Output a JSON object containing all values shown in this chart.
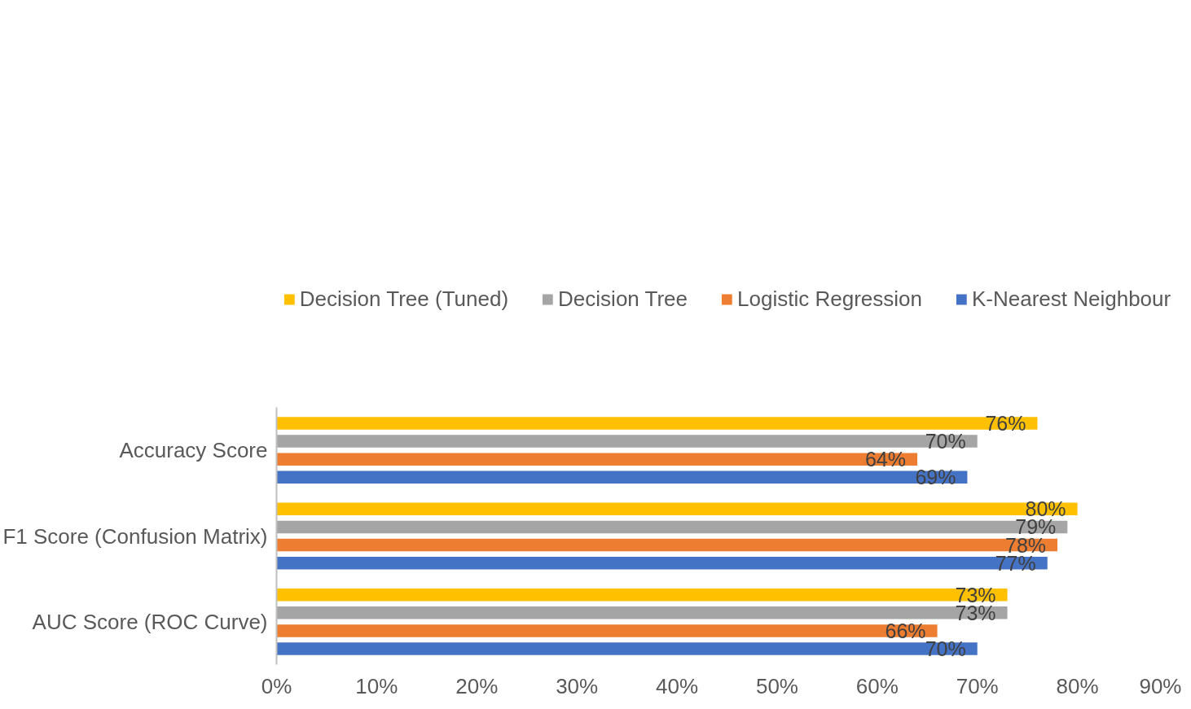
{
  "chart_data": {
    "type": "bar",
    "orientation": "horizontal",
    "categories": [
      "Accuracy Score",
      "F1 Score (Confusion Matrix)",
      "AUC Score (ROC Curve)"
    ],
    "series": [
      {
        "name": "Decision Tree (Tuned)",
        "color": "#ffc000",
        "values": [
          76,
          80,
          73
        ],
        "value_labels": [
          "76%",
          "80%",
          "73%"
        ]
      },
      {
        "name": "Decision Tree",
        "color": "#a5a5a5",
        "values": [
          70,
          79,
          73
        ],
        "value_labels": [
          "70%",
          "79%",
          "73%"
        ]
      },
      {
        "name": "Logistic Regression",
        "color": "#ed7d31",
        "values": [
          64,
          78,
          66
        ],
        "value_labels": [
          "64%",
          "78%",
          "66%"
        ]
      },
      {
        "name": "K-Nearest Neighbour",
        "color": "#4472c4",
        "values": [
          69,
          77,
          70
        ],
        "value_labels": [
          "69%",
          "77%",
          "70%"
        ]
      }
    ],
    "xlim": [
      0,
      90
    ],
    "xticks": [
      {
        "value": 0,
        "label": "0%"
      },
      {
        "value": 10,
        "label": "10%"
      },
      {
        "value": 20,
        "label": "20%"
      },
      {
        "value": 30,
        "label": "30%"
      },
      {
        "value": 40,
        "label": "40%"
      },
      {
        "value": 50,
        "label": "50%"
      },
      {
        "value": 60,
        "label": "60%"
      },
      {
        "value": 70,
        "label": "70%"
      },
      {
        "value": 80,
        "label": "80%"
      },
      {
        "value": 90,
        "label": "90%"
      }
    ],
    "grid": false,
    "legend": "top"
  }
}
